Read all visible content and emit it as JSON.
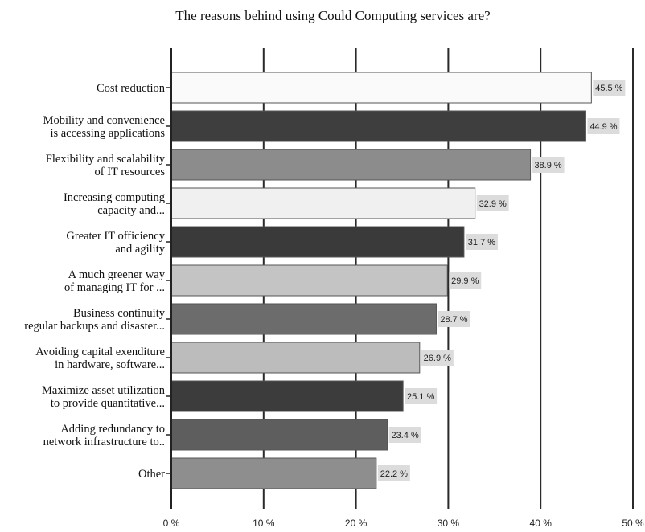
{
  "chart_data": {
    "type": "bar",
    "orientation": "horizontal",
    "title": "The reasons behind using Could Computing services are?",
    "xlabel": "",
    "ylabel": "",
    "xlim": [
      0,
      50
    ],
    "grid": true,
    "legend": "none",
    "x_ticks": [
      "0 %",
      "10 %",
      "20 %",
      "30 %",
      "40 %",
      "50 %"
    ],
    "categories": [
      [
        "Cost reduction"
      ],
      [
        "Mobility and convenience",
        "is accessing applications"
      ],
      [
        "Flexibility and scalability",
        "of IT resources"
      ],
      [
        "Increasing computing",
        "capacity and..."
      ],
      [
        "Greater IT officiency",
        "and agility"
      ],
      [
        "A much greener way",
        "of managing IT for ..."
      ],
      [
        "Business continuity",
        "regular backups and disaster..."
      ],
      [
        "Avoiding capital exenditure",
        "in hardware, software..."
      ],
      [
        "Maximize asset utilization",
        "to provide quantitative..."
      ],
      [
        "Adding redundancy to",
        "network infrastructure to.."
      ],
      [
        "Other"
      ]
    ],
    "values": [
      45.5,
      44.9,
      38.9,
      32.9,
      31.7,
      29.9,
      28.7,
      26.9,
      25.1,
      23.4,
      22.2
    ],
    "value_labels": [
      "45.5 %",
      "44.9 %",
      "38.9 %",
      "32.9 %",
      "31.7 %",
      "29.9 %",
      "28.7 %",
      "26.9 %",
      "25.1 %",
      "23.4 %",
      "22.2 %"
    ],
    "bar_colors": [
      "#fafafa",
      "#3e3e3e",
      "#8c8c8c",
      "#f0f0f0",
      "#3a3a3a",
      "#c4c4c4",
      "#6c6c6c",
      "#bcbcbc",
      "#3c3c3c",
      "#5e5e5e",
      "#8e8e8e"
    ],
    "label_box_color": "#dcdcdc",
    "grid_color": "#2a2a2a"
  }
}
